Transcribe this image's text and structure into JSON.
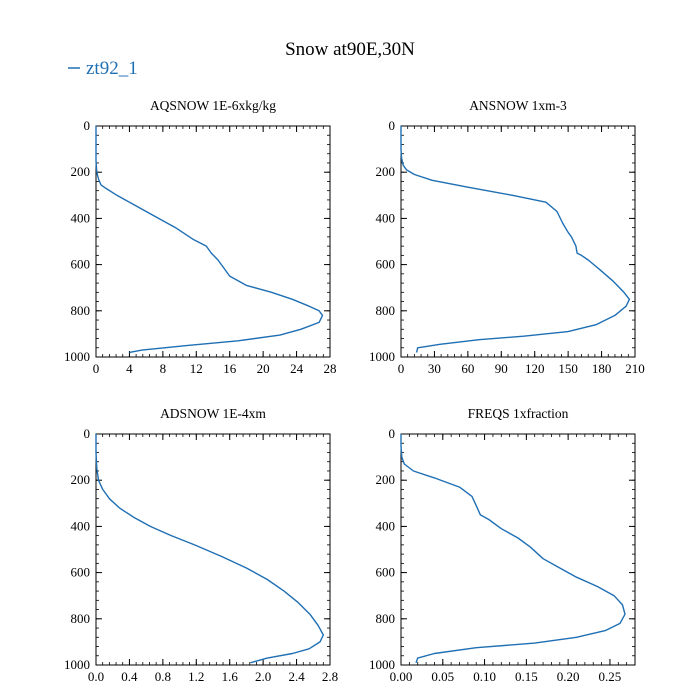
{
  "title": "Snow at90E,30N",
  "legend": {
    "label": "zt92_1",
    "color": "#1f6fb4",
    "placement": "top-left"
  },
  "chart_data": [
    {
      "type": "line",
      "title": "AQSNOW  1E-6xkg/kg",
      "xlabel": "",
      "ylabel": "",
      "xlim": [
        0,
        28
      ],
      "ylim": [
        1000,
        0
      ],
      "xticks": [
        0,
        4,
        8,
        12,
        16,
        20,
        24,
        28
      ],
      "xtick_labels": [
        "0",
        "4",
        "8",
        "12",
        "16",
        "20",
        "24",
        "28"
      ],
      "yticks": [
        0,
        200,
        400,
        600,
        800,
        1000
      ],
      "ytick_labels": [
        "0",
        "200",
        "400",
        "600",
        "800",
        "1000"
      ],
      "series": [
        {
          "name": "zt92_1",
          "x": [
            0,
            0,
            0,
            0,
            0.1,
            0.3,
            0.6,
            1.2,
            2.5,
            4.5,
            7.0,
            9.5,
            11.6,
            13.2,
            13.8,
            14.6,
            15.2,
            16.0,
            18.0,
            21.0,
            23.5,
            25.5,
            26.7,
            27.1,
            26.7,
            24.5,
            22.0,
            17.0,
            11.0,
            5.5,
            4.0
          ],
          "y": [
            0,
            50,
            100,
            150,
            200,
            230,
            255,
            270,
            300,
            340,
            390,
            440,
            490,
            520,
            550,
            580,
            610,
            650,
            690,
            720,
            750,
            780,
            800,
            820,
            850,
            880,
            905,
            930,
            950,
            970,
            980
          ]
        }
      ]
    },
    {
      "type": "line",
      "title": "ANSNOW  1xm-3",
      "xlabel": "",
      "ylabel": "",
      "xlim": [
        0,
        210
      ],
      "ylim": [
        1000,
        0
      ],
      "xticks": [
        0,
        30,
        60,
        90,
        120,
        150,
        180,
        210
      ],
      "xtick_labels": [
        "0",
        "30",
        "60",
        "90",
        "120",
        "150",
        "180",
        "210"
      ],
      "yticks": [
        0,
        200,
        400,
        600,
        800,
        1000
      ],
      "ytick_labels": [
        "0",
        "200",
        "400",
        "600",
        "800",
        "1000"
      ],
      "series": [
        {
          "name": "zt92_1",
          "x": [
            0,
            0,
            0,
            0.5,
            2,
            5,
            12,
            28,
            60,
            100,
            130,
            140,
            145,
            150,
            153,
            157,
            158,
            162,
            168,
            178,
            190,
            200,
            205,
            202,
            192,
            175,
            150,
            110,
            70,
            35,
            15,
            14
          ],
          "y": [
            0,
            50,
            100,
            140,
            170,
            190,
            210,
            235,
            265,
            300,
            330,
            370,
            420,
            460,
            480,
            520,
            550,
            560,
            580,
            620,
            670,
            720,
            750,
            780,
            820,
            860,
            890,
            910,
            925,
            945,
            960,
            980
          ]
        }
      ]
    },
    {
      "type": "line",
      "title": "ADSNOW  1E-4xm",
      "xlabel": "",
      "ylabel": "",
      "xlim": [
        0,
        2.8
      ],
      "ylim": [
        1000,
        0
      ],
      "xticks": [
        0,
        0.4,
        0.8,
        1.2,
        1.6,
        2.0,
        2.4,
        2.8
      ],
      "xtick_labels": [
        "0.0",
        "0.4",
        "0.8",
        "1.2",
        "1.6",
        "2.0",
        "2.4",
        "2.8"
      ],
      "yticks": [
        0,
        200,
        400,
        600,
        800,
        1000
      ],
      "ytick_labels": [
        "0",
        "200",
        "400",
        "600",
        "800",
        "1000"
      ],
      "series": [
        {
          "name": "zt92_1",
          "x": [
            0,
            0,
            0.01,
            0.03,
            0.08,
            0.16,
            0.28,
            0.45,
            0.65,
            0.9,
            1.18,
            1.5,
            1.8,
            2.05,
            2.25,
            2.42,
            2.56,
            2.66,
            2.72,
            2.68,
            2.55,
            2.35,
            2.05,
            1.85
          ],
          "y": [
            0,
            80,
            150,
            200,
            240,
            280,
            320,
            360,
            400,
            440,
            480,
            530,
            580,
            630,
            680,
            730,
            780,
            830,
            870,
            900,
            930,
            950,
            970,
            990
          ]
        }
      ]
    },
    {
      "type": "line",
      "title": "FREQS  1xfraction",
      "xlabel": "",
      "ylabel": "",
      "xlim": [
        0,
        0.28
      ],
      "ylim": [
        1000,
        0
      ],
      "xticks": [
        0,
        0.05,
        0.1,
        0.15,
        0.2,
        0.25
      ],
      "xtick_labels": [
        "0.00",
        "0.05",
        "0.10",
        "0.15",
        "0.20",
        "0.25"
      ],
      "yticks": [
        0,
        200,
        400,
        600,
        800,
        1000
      ],
      "ytick_labels": [
        "0",
        "200",
        "400",
        "600",
        "800",
        "1000"
      ],
      "series": [
        {
          "name": "zt92_1",
          "x": [
            0,
            0,
            0.001,
            0.004,
            0.015,
            0.04,
            0.07,
            0.085,
            0.09,
            0.095,
            0.105,
            0.12,
            0.14,
            0.155,
            0.17,
            0.19,
            0.21,
            0.235,
            0.255,
            0.265,
            0.268,
            0.262,
            0.245,
            0.21,
            0.16,
            0.09,
            0.04,
            0.02,
            0.018
          ],
          "y": [
            0,
            50,
            100,
            130,
            160,
            190,
            230,
            270,
            310,
            350,
            370,
            410,
            450,
            490,
            540,
            580,
            620,
            660,
            700,
            740,
            780,
            820,
            850,
            880,
            905,
            925,
            950,
            970,
            990
          ]
        }
      ]
    }
  ]
}
